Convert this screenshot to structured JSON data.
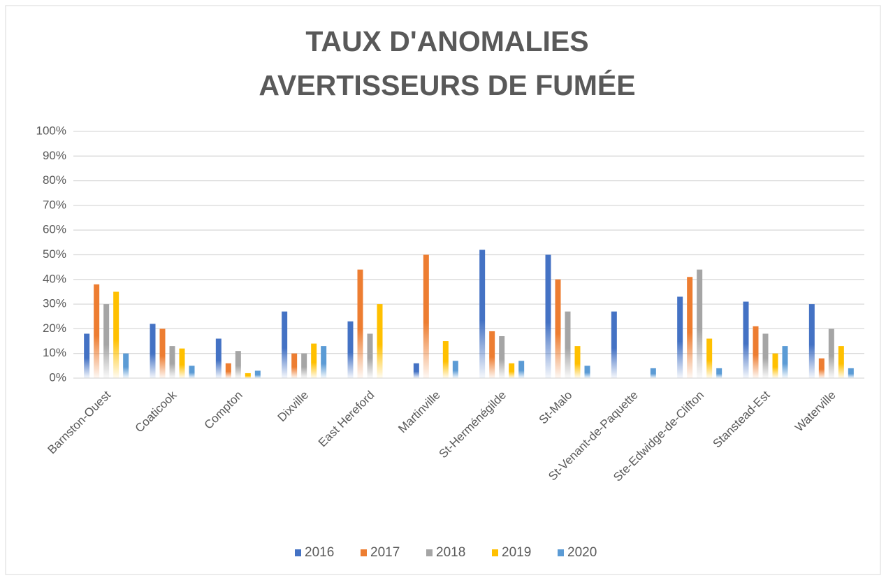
{
  "chart_data": {
    "type": "bar",
    "title": [
      "TAUX D'ANOMALIES",
      "AVERTISSEURS DE FUMÉE"
    ],
    "categories": [
      "Barnston-Ouest",
      "Coaticook",
      "Compton",
      "Dixville",
      "East Hereford",
      "Martinville",
      "St-Herménégilde",
      "St-Malo",
      "St-Venant-de-Paquette",
      "Ste-Edwidge-de-Clifton",
      "Stanstead-Est",
      "Waterville"
    ],
    "series": [
      {
        "name": "2016",
        "color": "#4472c4",
        "values": [
          18,
          22,
          16,
          27,
          23,
          6,
          52,
          50,
          27,
          33,
          31,
          30
        ]
      },
      {
        "name": "2017",
        "color": "#ed7d31",
        "values": [
          38,
          20,
          6,
          10,
          44,
          50,
          19,
          40,
          null,
          41,
          21,
          8
        ]
      },
      {
        "name": "2018",
        "color": "#a5a5a5",
        "values": [
          30,
          13,
          11,
          10,
          18,
          null,
          17,
          27,
          null,
          44,
          18,
          20
        ]
      },
      {
        "name": "2019",
        "color": "#ffc000",
        "values": [
          35,
          12,
          2,
          14,
          30,
          15,
          6,
          13,
          null,
          16,
          10,
          13
        ]
      },
      {
        "name": "2020",
        "color": "#5b9bd5",
        "values": [
          10,
          5,
          3,
          13,
          null,
          7,
          7,
          5,
          4,
          4,
          13,
          4
        ]
      }
    ],
    "ylim": [
      0,
      100
    ],
    "yticks": [
      {
        "value": 0,
        "label": "0%"
      },
      {
        "value": 10,
        "label": "10%"
      },
      {
        "value": 20,
        "label": "20%"
      },
      {
        "value": 30,
        "label": "30%"
      },
      {
        "value": 40,
        "label": "40%"
      },
      {
        "value": 50,
        "label": "50%"
      },
      {
        "value": 60,
        "label": "60%"
      },
      {
        "value": 70,
        "label": "70%"
      },
      {
        "value": 80,
        "label": "80%"
      },
      {
        "value": 90,
        "label": "90%"
      },
      {
        "value": 100,
        "label": "100%"
      }
    ],
    "grid": true,
    "legend": "bottom"
  }
}
